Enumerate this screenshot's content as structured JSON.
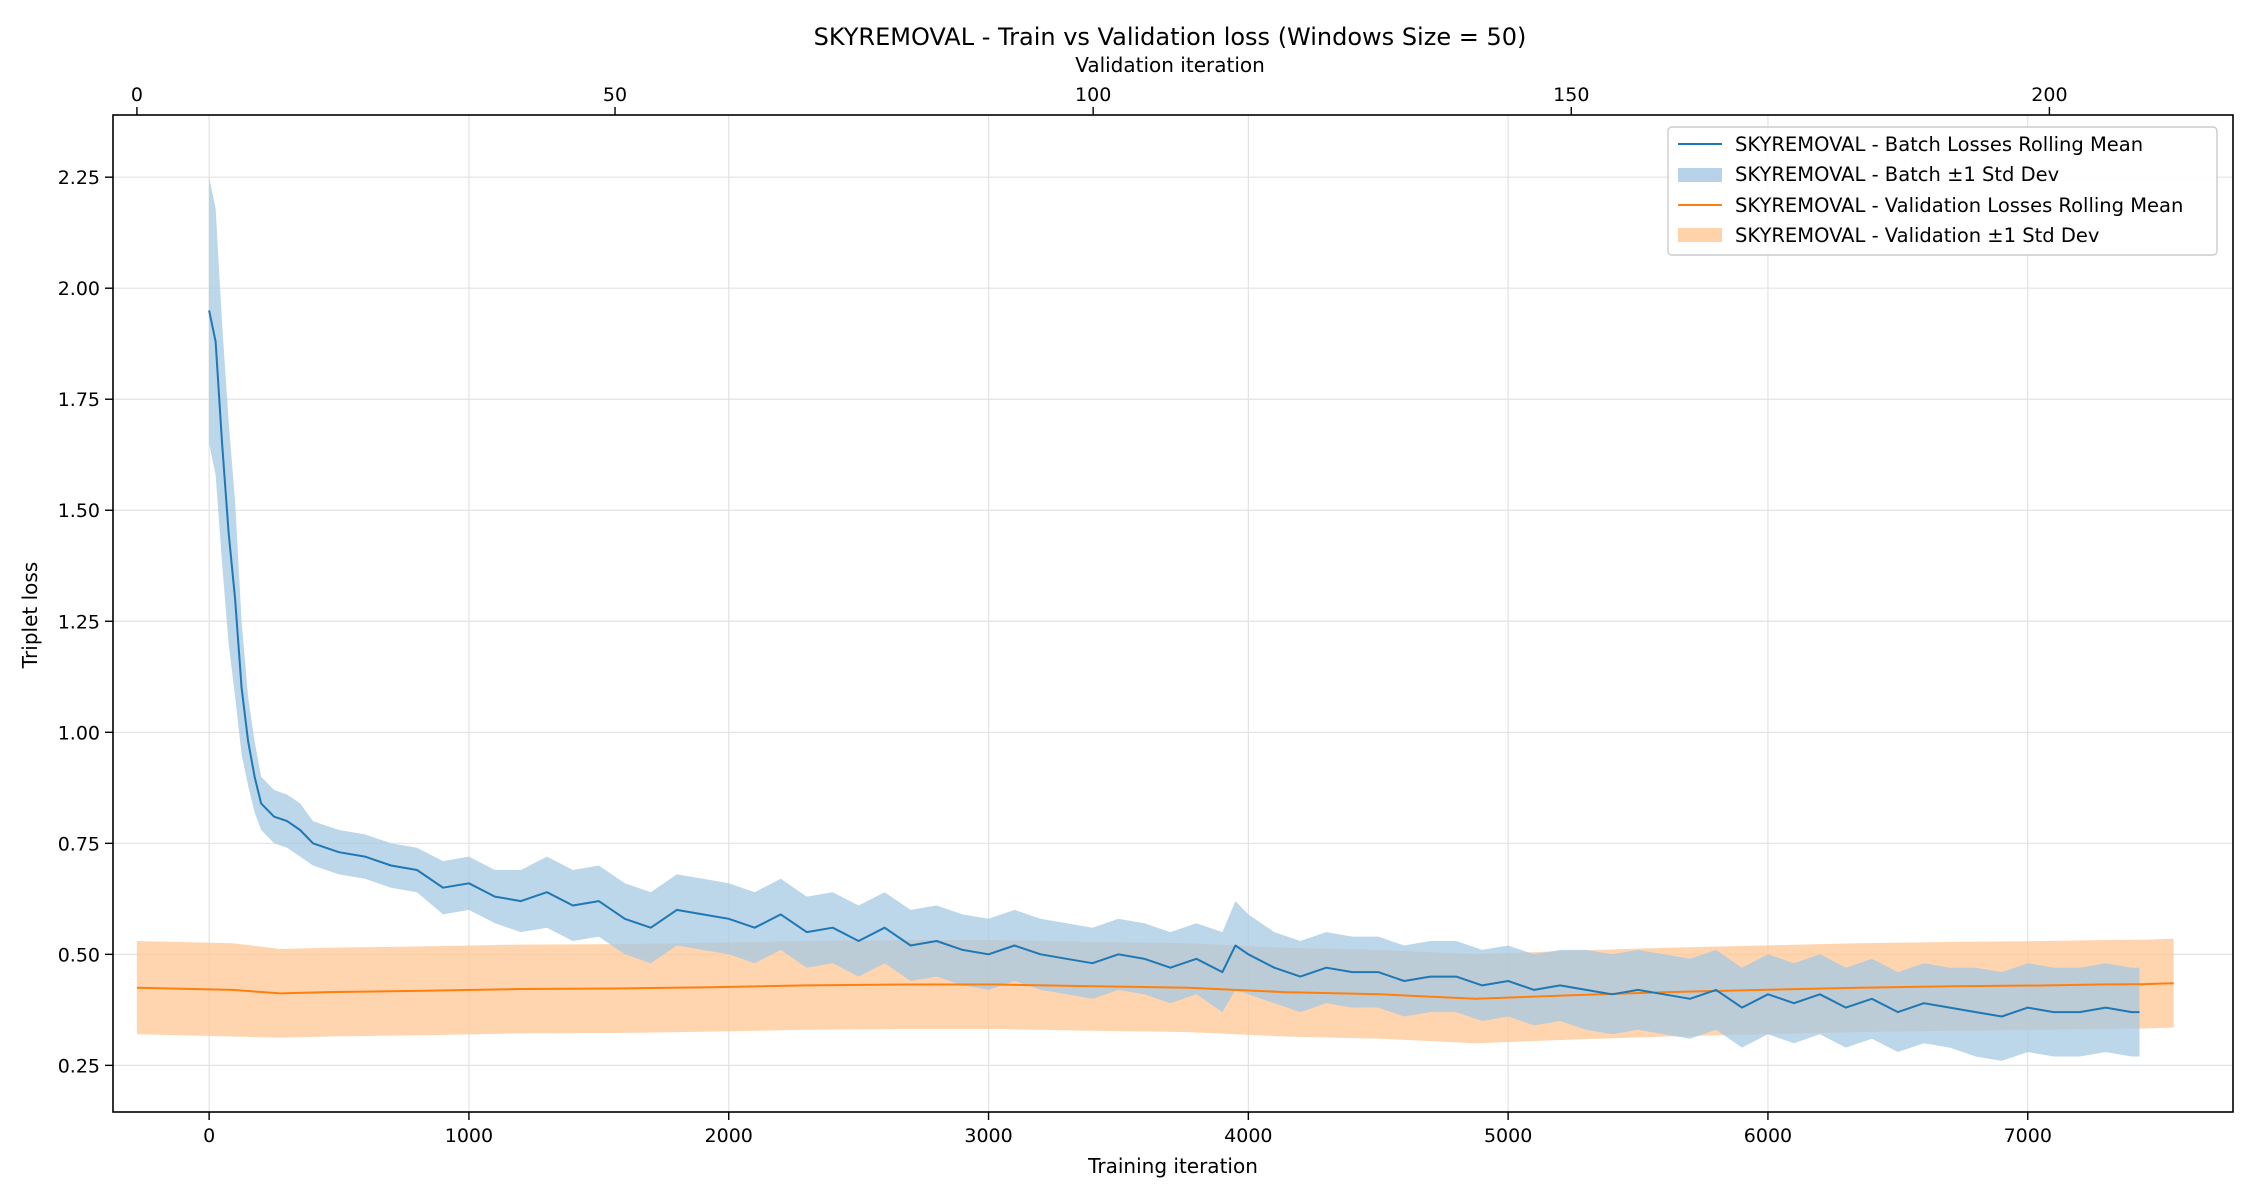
{
  "chart_data": {
    "type": "line",
    "title": "SKYREMOVAL - Train vs Validation loss (Windows Size = 50)",
    "xlabel": "Training iteration",
    "x2label": "Validation iteration",
    "ylabel": "Triplet loss",
    "xlim": [
      -370,
      7790
    ],
    "ylim": [
      0.145,
      2.39
    ],
    "x2lim": [
      -2.5,
      219.2
    ],
    "xticks": [
      0,
      1000,
      2000,
      3000,
      4000,
      5000,
      6000,
      7000
    ],
    "x2ticks": [
      0,
      50,
      100,
      150,
      200
    ],
    "yticks": [
      0.25,
      0.5,
      0.75,
      1.0,
      1.25,
      1.5,
      1.75,
      2.0,
      2.25
    ],
    "grid": true,
    "legend_position": "top-right",
    "colors": {
      "batch": "#1f77b4",
      "batch_band": "#a6c8e3",
      "validation": "#ff7f0e",
      "validation_band": "#ffc794"
    },
    "legend": [
      "SKYREMOVAL - Batch Losses Rolling Mean",
      "SKYREMOVAL - Batch ±1 Std Dev",
      "SKYREMOVAL - Validation Losses Rolling Mean",
      "SKYREMOVAL - Validation ±1 Std Dev"
    ],
    "series": [
      {
        "name": "SKYREMOVAL - Batch Losses Rolling Mean",
        "x": [
          0,
          25,
          50,
          75,
          100,
          125,
          150,
          175,
          200,
          250,
          300,
          350,
          400,
          450,
          500,
          600,
          700,
          800,
          900,
          1000,
          1100,
          1200,
          1300,
          1400,
          1500,
          1600,
          1700,
          1800,
          1900,
          2000,
          2100,
          2200,
          2300,
          2400,
          2500,
          2600,
          2700,
          2800,
          2900,
          3000,
          3100,
          3200,
          3300,
          3400,
          3500,
          3600,
          3700,
          3800,
          3900,
          3950,
          4000,
          4100,
          4200,
          4300,
          4400,
          4500,
          4600,
          4700,
          4800,
          4900,
          5000,
          5100,
          5200,
          5300,
          5400,
          5500,
          5600,
          5700,
          5800,
          5900,
          6000,
          6100,
          6200,
          6300,
          6400,
          6500,
          6600,
          6700,
          6800,
          6900,
          7000,
          7100,
          7200,
          7300,
          7400,
          7430
        ],
        "values": [
          1.95,
          1.88,
          1.65,
          1.45,
          1.3,
          1.1,
          0.98,
          0.9,
          0.84,
          0.81,
          0.8,
          0.78,
          0.75,
          0.74,
          0.73,
          0.72,
          0.7,
          0.69,
          0.65,
          0.66,
          0.63,
          0.62,
          0.64,
          0.61,
          0.62,
          0.58,
          0.56,
          0.6,
          0.59,
          0.58,
          0.56,
          0.59,
          0.55,
          0.56,
          0.53,
          0.56,
          0.52,
          0.53,
          0.51,
          0.5,
          0.52,
          0.5,
          0.49,
          0.48,
          0.5,
          0.49,
          0.47,
          0.49,
          0.46,
          0.52,
          0.5,
          0.47,
          0.45,
          0.47,
          0.46,
          0.46,
          0.44,
          0.45,
          0.45,
          0.43,
          0.44,
          0.42,
          0.43,
          0.42,
          0.41,
          0.42,
          0.41,
          0.4,
          0.42,
          0.38,
          0.41,
          0.39,
          0.41,
          0.38,
          0.4,
          0.37,
          0.39,
          0.38,
          0.37,
          0.36,
          0.38,
          0.37,
          0.37,
          0.38,
          0.37,
          0.37
        ],
        "std": [
          0.3,
          0.3,
          0.27,
          0.25,
          0.22,
          0.15,
          0.1,
          0.08,
          0.06,
          0.06,
          0.06,
          0.06,
          0.05,
          0.05,
          0.05,
          0.05,
          0.05,
          0.05,
          0.06,
          0.06,
          0.06,
          0.07,
          0.08,
          0.08,
          0.08,
          0.08,
          0.08,
          0.08,
          0.08,
          0.08,
          0.08,
          0.08,
          0.08,
          0.08,
          0.08,
          0.08,
          0.08,
          0.08,
          0.08,
          0.08,
          0.08,
          0.08,
          0.08,
          0.08,
          0.08,
          0.08,
          0.08,
          0.08,
          0.09,
          0.1,
          0.09,
          0.08,
          0.08,
          0.08,
          0.08,
          0.08,
          0.08,
          0.08,
          0.08,
          0.08,
          0.08,
          0.08,
          0.08,
          0.09,
          0.09,
          0.09,
          0.09,
          0.09,
          0.09,
          0.09,
          0.09,
          0.09,
          0.09,
          0.09,
          0.09,
          0.09,
          0.09,
          0.09,
          0.1,
          0.1,
          0.1,
          0.1,
          0.1,
          0.1,
          0.1,
          0.1
        ]
      },
      {
        "name": "SKYREMOVAL - Validation Losses Rolling Mean",
        "x2": [
          0,
          10,
          15,
          20,
          30,
          40,
          50,
          60,
          70,
          80,
          90,
          100,
          110,
          120,
          130,
          140,
          150,
          160,
          170,
          180,
          190,
          200,
          205,
          210,
          213
        ],
        "values": [
          0.425,
          0.42,
          0.412,
          0.415,
          0.418,
          0.422,
          0.423,
          0.426,
          0.43,
          0.432,
          0.432,
          0.428,
          0.425,
          0.415,
          0.41,
          0.4,
          0.408,
          0.415,
          0.42,
          0.425,
          0.428,
          0.43,
          0.432,
          0.433,
          0.435
        ],
        "std": [
          0.105,
          0.105,
          0.1,
          0.1,
          0.1,
          0.1,
          0.1,
          0.1,
          0.1,
          0.1,
          0.1,
          0.1,
          0.1,
          0.1,
          0.1,
          0.1,
          0.1,
          0.1,
          0.1,
          0.1,
          0.1,
          0.1,
          0.1,
          0.1,
          0.1
        ]
      }
    ]
  }
}
